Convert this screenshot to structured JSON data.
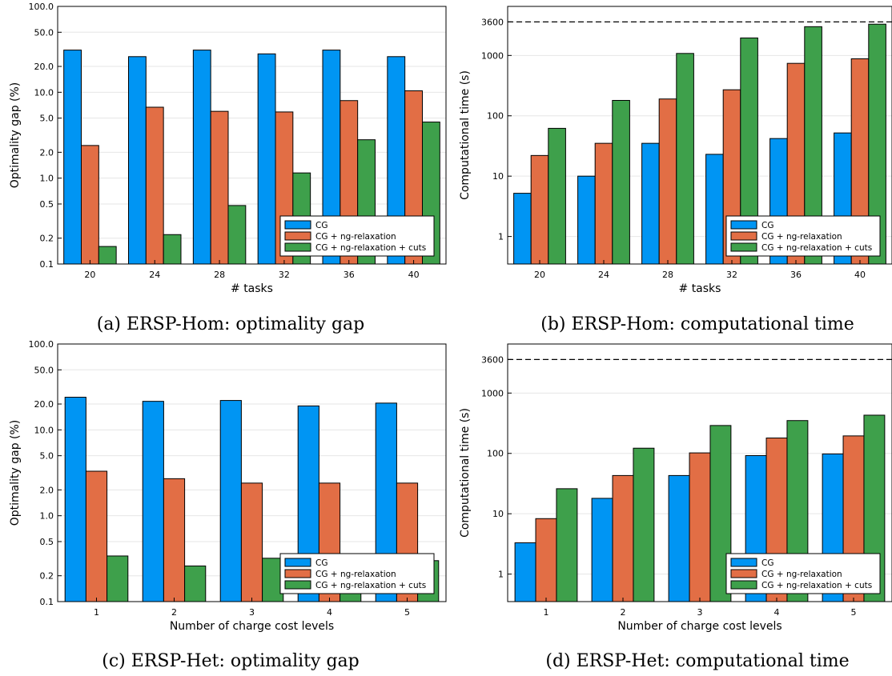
{
  "colors": {
    "CG": "#0095f3",
    "CG + ng-relaxation": "#e26e45",
    "CG + ng-relaxation + cuts": "#3ea04b",
    "reference_line": "#000000"
  },
  "chart_data": [
    {
      "id": "a",
      "type": "bar",
      "caption": "(a) ERSP-Hom: optimality gap",
      "xlabel": "# tasks",
      "ylabel": "Optimality gap (%)",
      "yscale": "log",
      "ylim": [
        0.1,
        100
      ],
      "yticks": [
        "0.1",
        "0.2",
        "0.5",
        "1.0",
        "2.0",
        "5.0",
        "10.0",
        "20.0",
        "50.0",
        "100.0"
      ],
      "categories": [
        "20",
        "24",
        "28",
        "32",
        "36",
        "40"
      ],
      "series": [
        {
          "name": "CG",
          "values": [
            31,
            26,
            31,
            28,
            31,
            26
          ]
        },
        {
          "name": "CG + ng-relaxation",
          "values": [
            2.4,
            6.7,
            6.0,
            5.9,
            8.0,
            10.4
          ]
        },
        {
          "name": "CG + ng-relaxation + cuts",
          "values": [
            0.16,
            0.22,
            0.48,
            1.15,
            2.8,
            4.5
          ]
        }
      ],
      "legend": "bottom-right",
      "grid": true
    },
    {
      "id": "b",
      "type": "bar",
      "caption": "(b) ERSP-Hom: computational time",
      "xlabel": "# tasks",
      "ylabel": "Computational time (s)",
      "yscale": "log",
      "ylim": [
        0.35,
        6500
      ],
      "yticks": [
        "1",
        "10",
        "100",
        "1000",
        "3600"
      ],
      "reference_line": 3600,
      "categories": [
        "20",
        "24",
        "28",
        "32",
        "36",
        "40"
      ],
      "series": [
        {
          "name": "CG",
          "values": [
            5.2,
            10,
            35,
            23,
            42,
            52
          ]
        },
        {
          "name": "CG + ng-relaxation",
          "values": [
            22,
            35,
            190,
            270,
            740,
            880
          ]
        },
        {
          "name": "CG + ng-relaxation + cuts",
          "values": [
            62,
            180,
            1080,
            1950,
            3000,
            3300
          ]
        }
      ],
      "legend": "bottom-right",
      "grid": true
    },
    {
      "id": "c",
      "type": "bar",
      "caption": "(c) ERSP-Het: optimality gap",
      "xlabel": "Number of charge cost levels",
      "ylabel": "Optimality gap (%)",
      "yscale": "log",
      "ylim": [
        0.1,
        100
      ],
      "yticks": [
        "0.1",
        "0.2",
        "0.5",
        "1.0",
        "2.0",
        "5.0",
        "10.0",
        "20.0",
        "50.0",
        "100.0"
      ],
      "categories": [
        "1",
        "2",
        "3",
        "4",
        "5"
      ],
      "series": [
        {
          "name": "CG",
          "values": [
            24,
            21.5,
            22,
            19,
            20.5
          ]
        },
        {
          "name": "CG + ng-relaxation",
          "values": [
            3.3,
            2.7,
            2.4,
            2.4,
            2.4
          ]
        },
        {
          "name": "CG + ng-relaxation + cuts",
          "values": [
            0.34,
            0.26,
            0.32,
            0.3,
            0.3
          ]
        }
      ],
      "legend": "bottom-right",
      "grid": true
    },
    {
      "id": "d",
      "type": "bar",
      "caption": "(d) ERSP-Het: computational time",
      "xlabel": "Number of charge cost levels",
      "ylabel": "Computational time (s)",
      "yscale": "log",
      "ylim": [
        0.35,
        6500
      ],
      "yticks": [
        "1",
        "10",
        "100",
        "1000",
        "3600"
      ],
      "reference_line": 3600,
      "categories": [
        "1",
        "2",
        "3",
        "4",
        "5"
      ],
      "series": [
        {
          "name": "CG",
          "values": [
            3.3,
            18,
            43,
            92,
            98
          ]
        },
        {
          "name": "CG + ng-relaxation",
          "values": [
            8.3,
            43,
            102,
            180,
            195
          ]
        },
        {
          "name": "CG + ng-relaxation + cuts",
          "values": [
            26,
            122,
            290,
            350,
            430
          ]
        }
      ],
      "legend": "bottom-right",
      "grid": true
    }
  ]
}
